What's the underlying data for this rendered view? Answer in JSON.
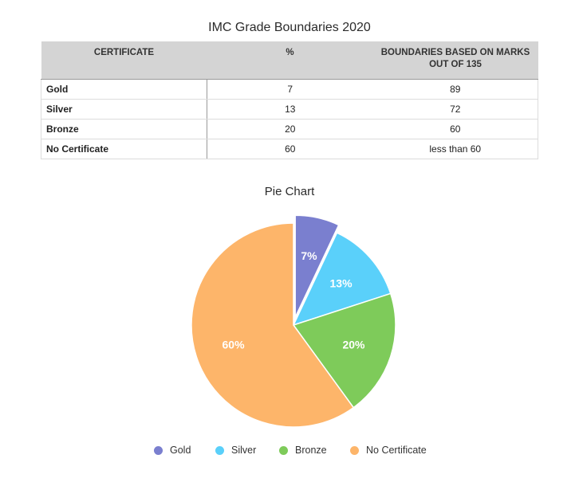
{
  "table": {
    "title": "IMC Grade Boundaries 2020",
    "headers": [
      "CERTIFICATE",
      "%",
      "BOUNDARIES BASED ON MARKS OUT OF 135"
    ],
    "rows": [
      {
        "certificate": "Gold",
        "percent": "7",
        "boundary": "89"
      },
      {
        "certificate": "Silver",
        "percent": "13",
        "boundary": "72"
      },
      {
        "certificate": "Bronze",
        "percent": "20",
        "boundary": "60"
      },
      {
        "certificate": "No Certificate",
        "percent": "60",
        "boundary": "less than 60"
      }
    ]
  },
  "chart_data": {
    "type": "pie",
    "title": "Pie Chart",
    "categories": [
      "Gold",
      "Silver",
      "Bronze",
      "No Certificate"
    ],
    "values": [
      7,
      13,
      20,
      60
    ],
    "labels": [
      "7%",
      "13%",
      "20%",
      "60%"
    ],
    "colors": [
      "#7a7fcf",
      "#5ad0fa",
      "#7ecb5a",
      "#fdb56a"
    ],
    "exploded": "Gold",
    "legend": "bottom"
  }
}
